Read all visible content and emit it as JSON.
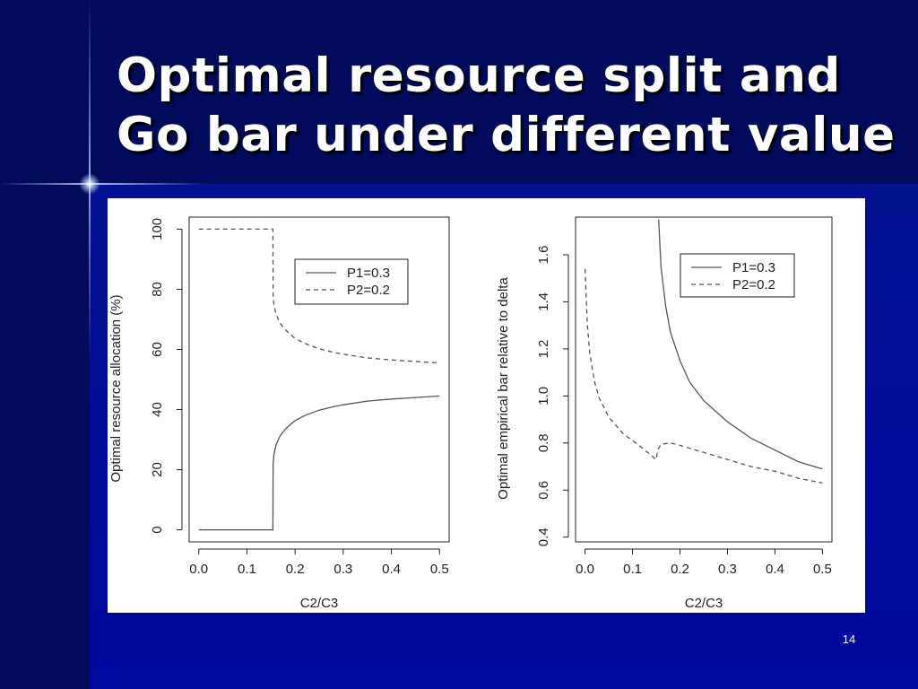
{
  "slide": {
    "title": "Optimal resource split and Go bar under different value",
    "page_number": "14"
  },
  "colors": {
    "background": "#01078a",
    "title": "#ffffff",
    "curve": "#555555"
  },
  "chart_data": [
    {
      "type": "line",
      "xlabel": "C2/C3",
      "ylabel": "Optimal resource allocation (%)",
      "xlim": [
        -0.02,
        0.52
      ],
      "ylim": [
        -4,
        104
      ],
      "xticks": [
        0.0,
        0.1,
        0.2,
        0.3,
        0.4,
        0.5
      ],
      "xtick_labels": [
        "0.0",
        "0.1",
        "0.2",
        "0.3",
        "0.4",
        "0.5"
      ],
      "yticks": [
        0,
        20,
        40,
        60,
        80,
        100
      ],
      "ytick_labels": [
        "0",
        "20",
        "40",
        "60",
        "80",
        "100"
      ],
      "legend_position": "top-right",
      "series": [
        {
          "name": "P1=0.3",
          "style": "solid",
          "x": [
            0.0,
            0.154,
            0.1545,
            0.156,
            0.16,
            0.165,
            0.17,
            0.18,
            0.19,
            0.2,
            0.22,
            0.25,
            0.28,
            0.3,
            0.35,
            0.4,
            0.45,
            0.5
          ],
          "y": [
            0,
            0,
            22,
            25,
            28,
            30,
            31.5,
            33.5,
            35,
            36.3,
            38,
            39.8,
            41,
            41.6,
            42.8,
            43.5,
            44,
            44.5
          ]
        },
        {
          "name": "P2=0.2",
          "style": "dashed",
          "x": [
            0.0,
            0.154,
            0.1545,
            0.156,
            0.16,
            0.165,
            0.17,
            0.18,
            0.19,
            0.2,
            0.22,
            0.25,
            0.28,
            0.3,
            0.35,
            0.4,
            0.45,
            0.5
          ],
          "y": [
            100,
            100,
            78,
            75,
            72,
            70,
            68.5,
            66.5,
            65,
            63.7,
            62,
            60.2,
            59,
            58.4,
            57.2,
            56.5,
            56,
            55.5
          ]
        }
      ]
    },
    {
      "type": "line",
      "xlabel": "C2/C3",
      "ylabel": "Optimal empirical bar relative to delta",
      "xlim": [
        -0.02,
        0.52
      ],
      "ylim": [
        0.38,
        1.76
      ],
      "xticks": [
        0.0,
        0.1,
        0.2,
        0.3,
        0.4,
        0.5
      ],
      "xtick_labels": [
        "0.0",
        "0.1",
        "0.2",
        "0.3",
        "0.4",
        "0.5"
      ],
      "yticks": [
        0.4,
        0.6,
        0.8,
        1.0,
        1.2,
        1.4,
        1.6
      ],
      "ytick_labels": [
        "0.4",
        "0.6",
        "0.8",
        "1.0",
        "1.2",
        "1.4",
        "1.6"
      ],
      "legend_position": "top-right",
      "series": [
        {
          "name": "P1=0.3",
          "style": "solid",
          "x": [
            0.155,
            0.16,
            0.17,
            0.18,
            0.2,
            0.22,
            0.25,
            0.3,
            0.35,
            0.4,
            0.45,
            0.5
          ],
          "y": [
            1.75,
            1.55,
            1.38,
            1.27,
            1.15,
            1.06,
            0.98,
            0.89,
            0.82,
            0.77,
            0.72,
            0.69
          ]
        },
        {
          "name": "P2=0.2",
          "style": "dashed",
          "x": [
            0.0,
            0.005,
            0.01,
            0.02,
            0.03,
            0.05,
            0.08,
            0.1,
            0.12,
            0.15,
            0.153,
            0.16,
            0.18,
            0.2,
            0.25,
            0.3,
            0.35,
            0.4,
            0.45,
            0.5
          ],
          "y": [
            1.54,
            1.3,
            1.18,
            1.06,
            0.99,
            0.91,
            0.84,
            0.81,
            0.78,
            0.73,
            0.77,
            0.795,
            0.8,
            0.79,
            0.76,
            0.73,
            0.7,
            0.68,
            0.65,
            0.63
          ]
        }
      ]
    }
  ]
}
